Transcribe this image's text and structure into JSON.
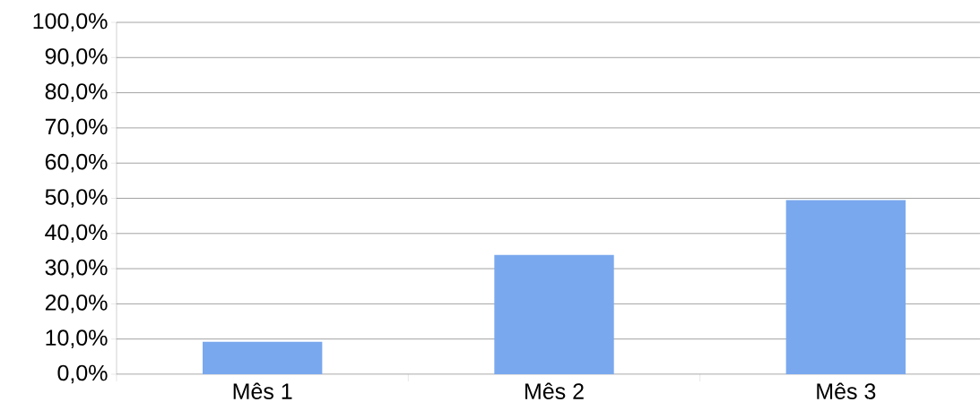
{
  "chart_data": {
    "type": "bar",
    "categories": [
      "Mês 1",
      "Mês 2",
      "Mês 3"
    ],
    "values": [
      9.2,
      33.9,
      49.5
    ],
    "color": "#7aa8ee",
    "ylim": [
      0,
      100
    ],
    "yticks": [
      {
        "value": 0,
        "label": "0,0%"
      },
      {
        "value": 10,
        "label": "10,0%"
      },
      {
        "value": 20,
        "label": "20,0%"
      },
      {
        "value": 30,
        "label": "30,0%"
      },
      {
        "value": 40,
        "label": "40,0%"
      },
      {
        "value": 50,
        "label": "50,0%"
      },
      {
        "value": 60,
        "label": "60,0%"
      },
      {
        "value": 70,
        "label": "70,0%"
      },
      {
        "value": 80,
        "label": "80,0%"
      },
      {
        "value": 90,
        "label": "90,0%"
      },
      {
        "value": 100,
        "label": "100,0%"
      }
    ],
    "grid": "y"
  }
}
